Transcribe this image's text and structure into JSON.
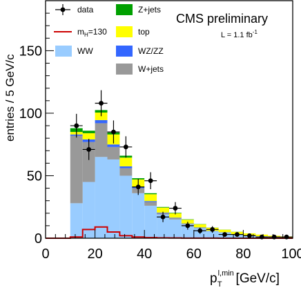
{
  "chart_data": {
    "type": "bar",
    "stacked": true,
    "title": "CMS preliminary",
    "luminosity": "L = 1.1 fb",
    "luminosity_sup": "-1",
    "xlabel": "[GeV/c]",
    "xlabel_symbol": "p",
    "xlabel_sup": "l,min",
    "xlabel_sub": "T",
    "ylabel": "entries / 5 GeV/c",
    "xlim": [
      0,
      100
    ],
    "ylim": [
      0,
      190
    ],
    "xticks": [
      0,
      20,
      40,
      60,
      80,
      100
    ],
    "yticks": [
      0,
      50,
      100,
      150
    ],
    "bin_edges": [
      10,
      15,
      20,
      25,
      30,
      35,
      40,
      45,
      50,
      55,
      60,
      65,
      70,
      75,
      80,
      85,
      90,
      95,
      100
    ],
    "stack_order": [
      "WW",
      "W+jets",
      "WZ/ZZ",
      "top",
      "Z+jets"
    ],
    "series": [
      {
        "name": "WW",
        "color": "#99ccff",
        "values": [
          28,
          45,
          65,
          63,
          50,
          36,
          26,
          19,
          15,
          11,
          8,
          5.5,
          4.5,
          3.2,
          2.3,
          1.5,
          1.0,
          0.6
        ]
      },
      {
        "name": "Z+jets",
        "color": "#00a000",
        "values": [
          3,
          2,
          2,
          1.5,
          1.5,
          1,
          0.8,
          0.5,
          0.4,
          0.3,
          0.2,
          0.1,
          0.1,
          0.1,
          0,
          0,
          0,
          0
        ]
      },
      {
        "name": "top",
        "color": "#ffff00",
        "values": [
          2,
          5,
          6,
          8,
          7,
          6,
          5.5,
          4,
          3.5,
          3,
          2.5,
          2.5,
          2,
          1.8,
          1.5,
          1.3,
          1,
          0.8
        ]
      },
      {
        "name": "WZ/ZZ",
        "color": "#3366ff",
        "values": [
          1,
          2,
          2.5,
          2,
          1.5,
          1,
          0.7,
          0.5,
          0.4,
          0.3,
          0.3,
          0.2,
          0.2,
          0.1,
          0.1,
          0.1,
          0,
          0
        ]
      },
      {
        "name": "W+jets",
        "color": "#999999",
        "values": [
          54,
          32,
          27,
          10,
          6,
          4,
          3,
          1,
          1,
          0.5,
          0.3,
          0.2,
          0.1,
          0,
          0,
          0,
          0,
          0
        ]
      }
    ],
    "signal": {
      "name": "m_H=130",
      "label_main": "m",
      "label_sub": "H",
      "label_rest": "=130",
      "color": "#cc0000",
      "values": [
        1,
        7,
        9,
        5,
        2,
        1,
        0.5,
        0.3,
        0.2,
        0.1,
        0.1,
        0.05,
        0,
        0,
        0,
        0,
        0,
        0
      ]
    },
    "data": {
      "name": "data",
      "points": [
        {
          "x": 12.5,
          "y": 90
        },
        {
          "x": 17.5,
          "y": 71
        },
        {
          "x": 22.5,
          "y": 108
        },
        {
          "x": 27.5,
          "y": 85
        },
        {
          "x": 32.5,
          "y": 73
        },
        {
          "x": 37.5,
          "y": 41
        },
        {
          "x": 42.5,
          "y": 46
        },
        {
          "x": 47.5,
          "y": 17
        },
        {
          "x": 52.5,
          "y": 24
        },
        {
          "x": 57.5,
          "y": 10
        },
        {
          "x": 62.5,
          "y": 6
        },
        {
          "x": 67.5,
          "y": 7
        },
        {
          "x": 72.5,
          "y": 3
        },
        {
          "x": 77.5,
          "y": 3
        },
        {
          "x": 82.5,
          "y": 2
        },
        {
          "x": 87.5,
          "y": 1
        },
        {
          "x": 92.5,
          "y": 1
        },
        {
          "x": 97.5,
          "y": 1
        }
      ]
    },
    "legend": [
      {
        "label": "data",
        "kind": "marker"
      },
      {
        "label": "Z+jets",
        "kind": "fill",
        "color": "#00a000"
      },
      {
        "label": "m_H=130",
        "kind": "line",
        "color": "#cc0000"
      },
      {
        "label": "top",
        "kind": "fill",
        "color": "#ffff00"
      },
      {
        "label": "WW",
        "kind": "fill",
        "color": "#99ccff"
      },
      {
        "label": "WZ/ZZ",
        "kind": "fill",
        "color": "#3366ff"
      },
      {
        "label": "W+jets",
        "kind": "fill",
        "color": "#999999"
      }
    ],
    "legend_placement": "top-left",
    "grid": false
  }
}
